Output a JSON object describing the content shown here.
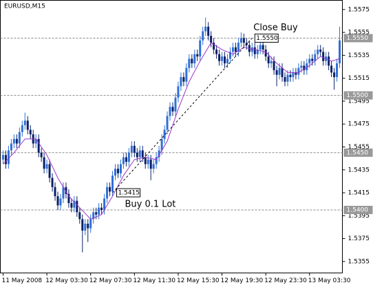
{
  "chart_data": {
    "type": "candlestick",
    "title": "EURUSD,M15",
    "open": [
      1.5444,
      1.5448,
      1.544,
      1.5452,
      1.5458,
      1.5462,
      1.5458,
      1.5468,
      1.5474,
      1.5478,
      1.547,
      1.5466,
      1.5458,
      1.5462,
      1.545,
      1.5446,
      1.5436,
      1.544,
      1.5428,
      1.542,
      1.5412,
      1.5404,
      1.541,
      1.542,
      1.5414,
      1.5406,
      1.5402,
      1.5408,
      1.5398,
      1.5392,
      1.5382,
      1.5388,
      1.5384,
      1.5392,
      1.5398,
      1.5396,
      1.5402,
      1.54,
      1.541,
      1.542,
      1.5416,
      1.543,
      1.5436,
      1.5432,
      1.544,
      1.5446,
      1.5442,
      1.545,
      1.5456,
      1.545,
      1.5446,
      1.5452,
      1.5446,
      1.544,
      1.5444,
      1.5436,
      1.544,
      1.5446,
      1.5452,
      1.5462,
      1.547,
      1.5482,
      1.549,
      1.5486,
      1.5498,
      1.5508,
      1.5516,
      1.5512,
      1.5524,
      1.5532,
      1.5528,
      1.5536,
      1.5534,
      1.5548,
      1.5556,
      1.556,
      1.5552,
      1.5546,
      1.554,
      1.5536,
      1.553,
      1.5534,
      1.5528,
      1.5532,
      1.5538,
      1.5542,
      1.5538,
      1.5546,
      1.555,
      1.5546,
      1.5544,
      1.5538,
      1.5542,
      1.5536,
      1.554,
      1.5544,
      1.554,
      1.5534,
      1.5528,
      1.553,
      1.5522,
      1.5518,
      1.5524,
      1.5516,
      1.5512,
      1.5518,
      1.5516,
      1.552,
      1.5518,
      1.5524,
      1.5526,
      1.5522,
      1.5528,
      1.5532,
      1.553,
      1.5536,
      1.554,
      1.5538,
      1.553,
      1.5534,
      1.5526,
      1.552,
      1.5516,
      1.5528
    ],
    "high": [
      1.5452,
      1.5452,
      1.5456,
      1.5462,
      1.5466,
      1.5466,
      1.5472,
      1.5478,
      1.5485,
      1.5482,
      1.5474,
      1.547,
      1.5466,
      1.5466,
      1.5454,
      1.545,
      1.5444,
      1.5444,
      1.5432,
      1.5424,
      1.5416,
      1.5414,
      1.5424,
      1.5424,
      1.5418,
      1.541,
      1.5412,
      1.5412,
      1.5402,
      1.5396,
      1.5392,
      1.5392,
      1.5396,
      1.5402,
      1.5402,
      1.5406,
      1.5406,
      1.5414,
      1.5424,
      1.5424,
      1.5434,
      1.544,
      1.544,
      1.5444,
      1.545,
      1.545,
      1.5454,
      1.546,
      1.546,
      1.5454,
      1.5456,
      1.5456,
      1.545,
      1.5448,
      1.5448,
      1.5444,
      1.545,
      1.5456,
      1.5466,
      1.5474,
      1.5486,
      1.5494,
      1.5494,
      1.5502,
      1.5512,
      1.552,
      1.552,
      1.5528,
      1.5536,
      1.5536,
      1.554,
      1.554,
      1.5552,
      1.556,
      1.5568,
      1.5564,
      1.5556,
      1.555,
      1.5544,
      1.554,
      1.5538,
      1.5538,
      1.5536,
      1.5542,
      1.5546,
      1.5546,
      1.555,
      1.5555,
      1.5554,
      1.555,
      1.5548,
      1.5546,
      1.5546,
      1.5544,
      1.5548,
      1.5548,
      1.5544,
      1.5538,
      1.5534,
      1.5534,
      1.5526,
      1.5528,
      1.5528,
      1.552,
      1.5522,
      1.5522,
      1.5524,
      1.5524,
      1.5528,
      1.553,
      1.553,
      1.5532,
      1.5536,
      1.5536,
      1.554,
      1.5544,
      1.5544,
      1.5542,
      1.5538,
      1.5538,
      1.553,
      1.5524,
      1.5532,
      1.556
    ],
    "low": [
      1.544,
      1.5436,
      1.5436,
      1.5448,
      1.5454,
      1.5454,
      1.5454,
      1.5464,
      1.547,
      1.5466,
      1.5462,
      1.5454,
      1.5454,
      1.5446,
      1.5442,
      1.5432,
      1.5432,
      1.5424,
      1.5416,
      1.5408,
      1.54,
      1.54,
      1.5406,
      1.541,
      1.5402,
      1.5398,
      1.5398,
      1.5394,
      1.5388,
      1.5363,
      1.5378,
      1.5372,
      1.538,
      1.5388,
      1.5392,
      1.5392,
      1.5396,
      1.5396,
      1.5406,
      1.5412,
      1.5412,
      1.5426,
      1.5428,
      1.5428,
      1.5436,
      1.5438,
      1.5438,
      1.5446,
      1.5446,
      1.5442,
      1.5442,
      1.5442,
      1.5436,
      1.5436,
      1.5426,
      1.5432,
      1.5436,
      1.5442,
      1.5448,
      1.5458,
      1.5466,
      1.5478,
      1.5482,
      1.5482,
      1.5494,
      1.5504,
      1.5508,
      1.5508,
      1.552,
      1.5524,
      1.5524,
      1.553,
      1.553,
      1.5544,
      1.5552,
      1.5548,
      1.5542,
      1.5536,
      1.5532,
      1.5526,
      1.5526,
      1.5524,
      1.5524,
      1.5528,
      1.5534,
      1.5534,
      1.5534,
      1.5542,
      1.5542,
      1.554,
      1.5534,
      1.5534,
      1.5532,
      1.5532,
      1.5536,
      1.5536,
      1.553,
      1.5524,
      1.5524,
      1.5518,
      1.5508,
      1.5514,
      1.5512,
      1.5508,
      1.5508,
      1.5512,
      1.5512,
      1.5514,
      1.5514,
      1.552,
      1.5518,
      1.5518,
      1.5524,
      1.5526,
      1.5526,
      1.5532,
      1.5534,
      1.5526,
      1.5526,
      1.5522,
      1.5516,
      1.5505,
      1.5512,
      1.5524
    ],
    "close": [
      1.5448,
      1.544,
      1.5452,
      1.5458,
      1.5462,
      1.5458,
      1.5468,
      1.5474,
      1.5478,
      1.547,
      1.5466,
      1.5458,
      1.5462,
      1.545,
      1.5446,
      1.5436,
      1.544,
      1.5428,
      1.542,
      1.5412,
      1.5404,
      1.541,
      1.542,
      1.5414,
      1.5406,
      1.5402,
      1.5408,
      1.5398,
      1.5392,
      1.5382,
      1.5388,
      1.5384,
      1.5392,
      1.5398,
      1.5396,
      1.5402,
      1.54,
      1.541,
      1.542,
      1.5416,
      1.543,
      1.5436,
      1.5432,
      1.544,
      1.5446,
      1.5442,
      1.545,
      1.5456,
      1.545,
      1.5446,
      1.5452,
      1.5446,
      1.544,
      1.5444,
      1.5436,
      1.544,
      1.5446,
      1.5452,
      1.5462,
      1.547,
      1.5482,
      1.549,
      1.5486,
      1.5498,
      1.5508,
      1.5516,
      1.5512,
      1.5524,
      1.5532,
      1.5528,
      1.5536,
      1.5534,
      1.5548,
      1.5556,
      1.556,
      1.5552,
      1.5546,
      1.554,
      1.5536,
      1.553,
      1.5534,
      1.5528,
      1.5532,
      1.5538,
      1.5542,
      1.5538,
      1.5546,
      1.555,
      1.5546,
      1.5544,
      1.5538,
      1.5542,
      1.5536,
      1.554,
      1.5544,
      1.554,
      1.5534,
      1.5528,
      1.553,
      1.5522,
      1.5518,
      1.5524,
      1.5516,
      1.5512,
      1.5518,
      1.5516,
      1.552,
      1.5518,
      1.5524,
      1.5526,
      1.5522,
      1.5528,
      1.5532,
      1.553,
      1.5536,
      1.554,
      1.5538,
      1.553,
      1.5534,
      1.5526,
      1.552,
      1.5516,
      1.5528,
      1.5548
    ],
    "up_color": "#2f6fd6",
    "down_color": "#0a1f66",
    "ma": {
      "color": "#9933cc",
      "x": [
        0,
        4,
        8,
        12,
        16,
        20,
        24,
        28,
        32,
        36,
        40,
        44,
        48,
        52,
        56,
        60,
        64,
        68,
        72,
        76,
        80,
        84,
        88,
        92,
        96,
        100,
        104,
        108,
        112,
        116,
        120,
        123
      ],
      "values": [
        1.544,
        1.545,
        1.5462,
        1.5462,
        1.5448,
        1.5428,
        1.5412,
        1.5402,
        1.5392,
        1.5396,
        1.5412,
        1.543,
        1.5444,
        1.5446,
        1.5444,
        1.546,
        1.5488,
        1.5512,
        1.553,
        1.5546,
        1.554,
        1.5536,
        1.5542,
        1.554,
        1.5538,
        1.5528,
        1.552,
        1.552,
        1.5526,
        1.5534,
        1.553,
        1.5532
      ]
    },
    "xlim": [
      -1,
      124
    ],
    "xticks": [
      {
        "value": 0,
        "label": "11 May 2008"
      },
      {
        "value": 16,
        "label": "12 May 03:30"
      },
      {
        "value": 32,
        "label": "12 May 07:30"
      },
      {
        "value": 48,
        "label": "12 May 11:30"
      },
      {
        "value": 64,
        "label": "12 May 15:30"
      },
      {
        "value": 80,
        "label": "12 May 19:30"
      },
      {
        "value": 96,
        "label": "12 May 23:30"
      },
      {
        "value": 112,
        "label": "13 May 03:30"
      }
    ],
    "ylim": [
      1.5345,
      1.5583
    ],
    "yticks": [
      1.5575,
      1.5555,
      1.5535,
      1.5515,
      1.5495,
      1.5475,
      1.5455,
      1.5435,
      1.5415,
      1.5395,
      1.5375,
      1.5355
    ],
    "levels": [
      {
        "value": 1.555,
        "label": "1.5550"
      },
      {
        "value": 1.55,
        "label": "1.5500"
      },
      {
        "value": 1.545,
        "label": "1.5450"
      },
      {
        "value": 1.54,
        "label": "1.5400"
      }
    ],
    "trade": {
      "open_x": 40,
      "open_price": {
        "value": 1.5415,
        "label": "1.5415"
      },
      "close_x": 91,
      "close_price": {
        "value": 1.555,
        "label": "1.5550"
      },
      "open_text": "Buy 0.1 Lot",
      "close_text": "Close Buy"
    }
  }
}
